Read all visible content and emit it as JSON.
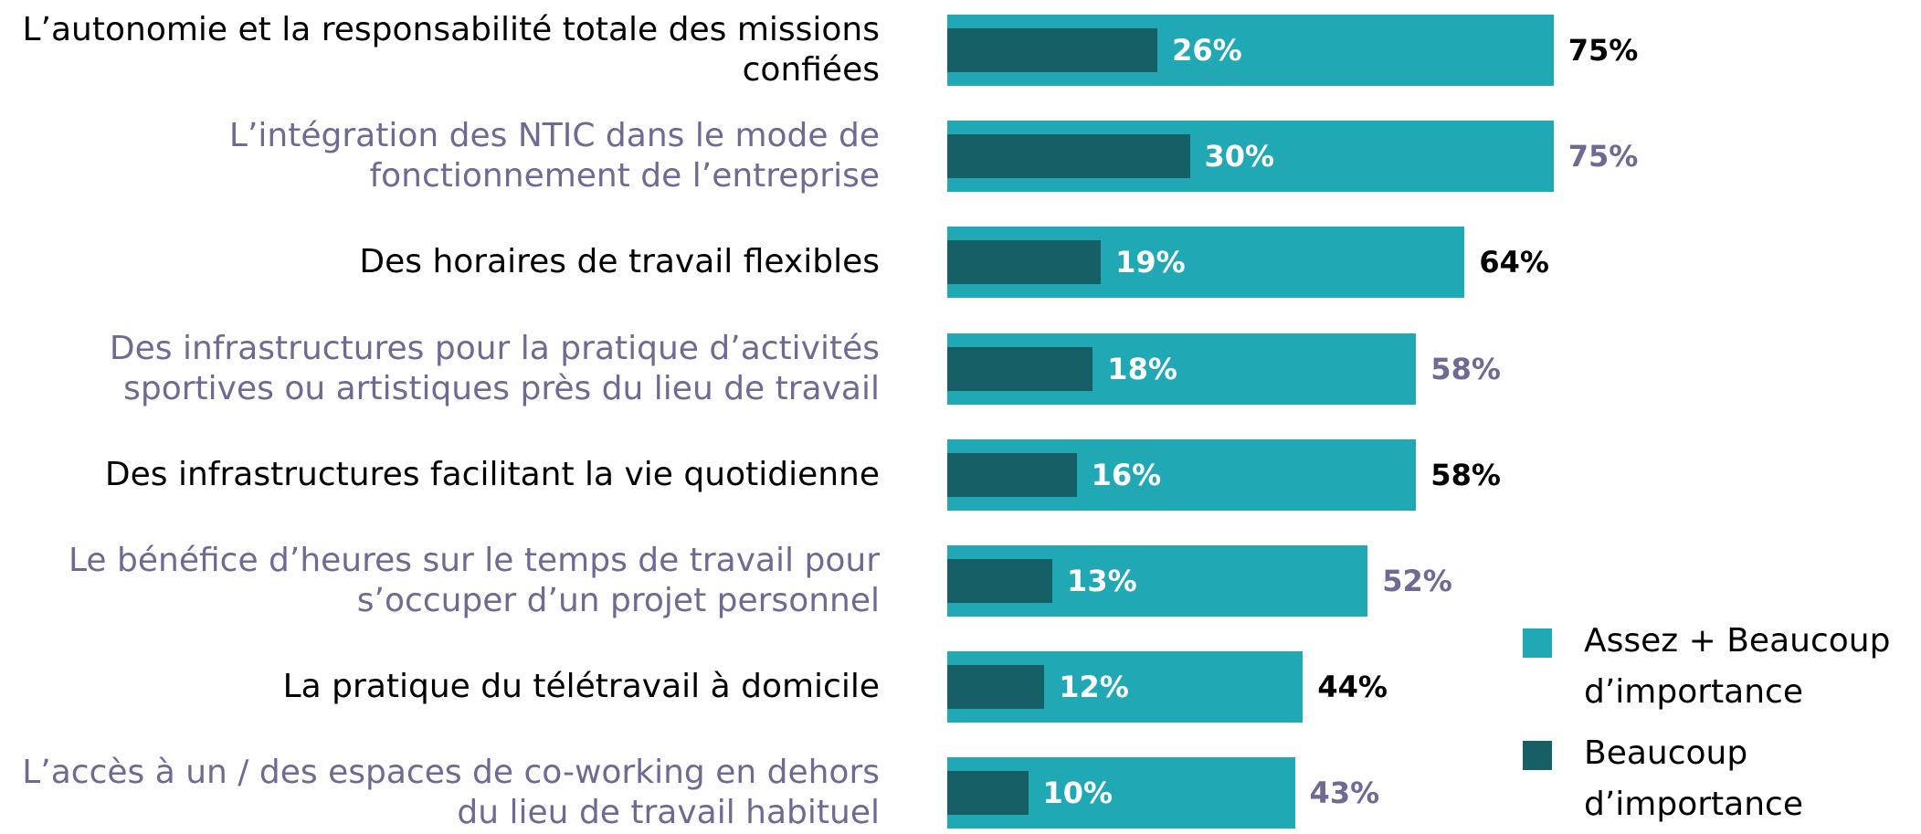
{
  "chart_data": {
    "type": "bar",
    "orientation": "horizontal",
    "overlap": true,
    "categories": [
      "L’autonomie et la responsabilité totale des missions confiées",
      "L’intégration des NTIC dans le mode de fonctionnement de l’entreprise",
      "Des horaires de travail flexibles",
      "Des infrastructures pour la pratique d’activités sportives ou artistiques près du lieu de travail",
      "Des infrastructures facilitant la vie quotidienne",
      "Le bénéfice d’heures sur le temps de travail pour s’occuper d’un projet personnel",
      "La pratique du télétravail à domicile",
      "L’accès à un / des espaces de co-working en dehors du lieu de travail habituel"
    ],
    "series": [
      {
        "name": "Assez + Beaucoup d’importance",
        "color": "#20a9b4",
        "values": [
          75,
          75,
          64,
          58,
          58,
          52,
          44,
          43
        ],
        "value_labels": [
          "75%",
          "75%",
          "64%",
          "58%",
          "58%",
          "52%",
          "44%",
          "43%"
        ]
      },
      {
        "name": "Beaucoup d’importance",
        "color": "#175f66",
        "values": [
          26,
          30,
          19,
          18,
          16,
          13,
          12,
          10
        ],
        "value_labels": [
          "26%",
          "30%",
          "19%",
          "18%",
          "16%",
          "13%",
          "12%",
          "10%"
        ]
      }
    ],
    "legend": "right"
  }
}
